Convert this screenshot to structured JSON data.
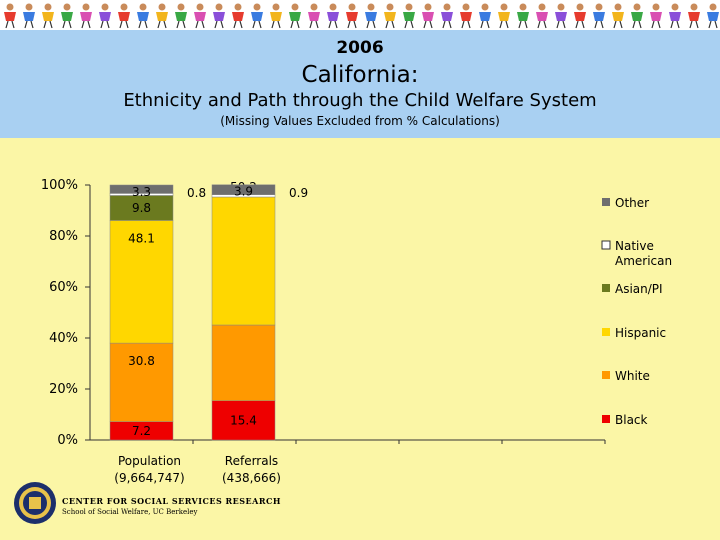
{
  "header": {
    "year": "2006",
    "title": "California:",
    "subtitle": "Ethnicity and Path through the Child Welfare System",
    "note": "(Missing Values Excluded from % Calculations)"
  },
  "footer": {
    "org": "CENTER FOR SOCIAL SERVICES RESEARCH",
    "school": "School of Social Welfare, UC Berkeley"
  },
  "colors": {
    "Black": "#ee0000",
    "White": "#ff9900",
    "Hispanic": "#ffd700",
    "Asian/PI": "#6b7a1f",
    "Native American": "#ffffff",
    "Other": "#6e6e6e"
  },
  "chart_data": {
    "type": "bar",
    "stacked": true,
    "percent": true,
    "ylim": [
      0,
      100
    ],
    "yticks": [
      "0%",
      "20%",
      "40%",
      "60%",
      "80%",
      "100%"
    ],
    "categories": [
      "Population\n(9,664,747)",
      "Referrals\n(438,666)"
    ],
    "series": [
      {
        "name": "Black",
        "values": [
          7.2,
          15.4
        ]
      },
      {
        "name": "White",
        "values": [
          30.8,
          29.7
        ]
      },
      {
        "name": "Hispanic",
        "values": [
          48.1,
          50.2
        ]
      },
      {
        "name": "Asian/PI",
        "values": [
          9.8,
          0
        ]
      },
      {
        "name": "Native American",
        "values": [
          0.8,
          0.9
        ]
      },
      {
        "name": "Other",
        "values": [
          3.3,
          3.9
        ]
      }
    ],
    "legend_position": "right"
  }
}
